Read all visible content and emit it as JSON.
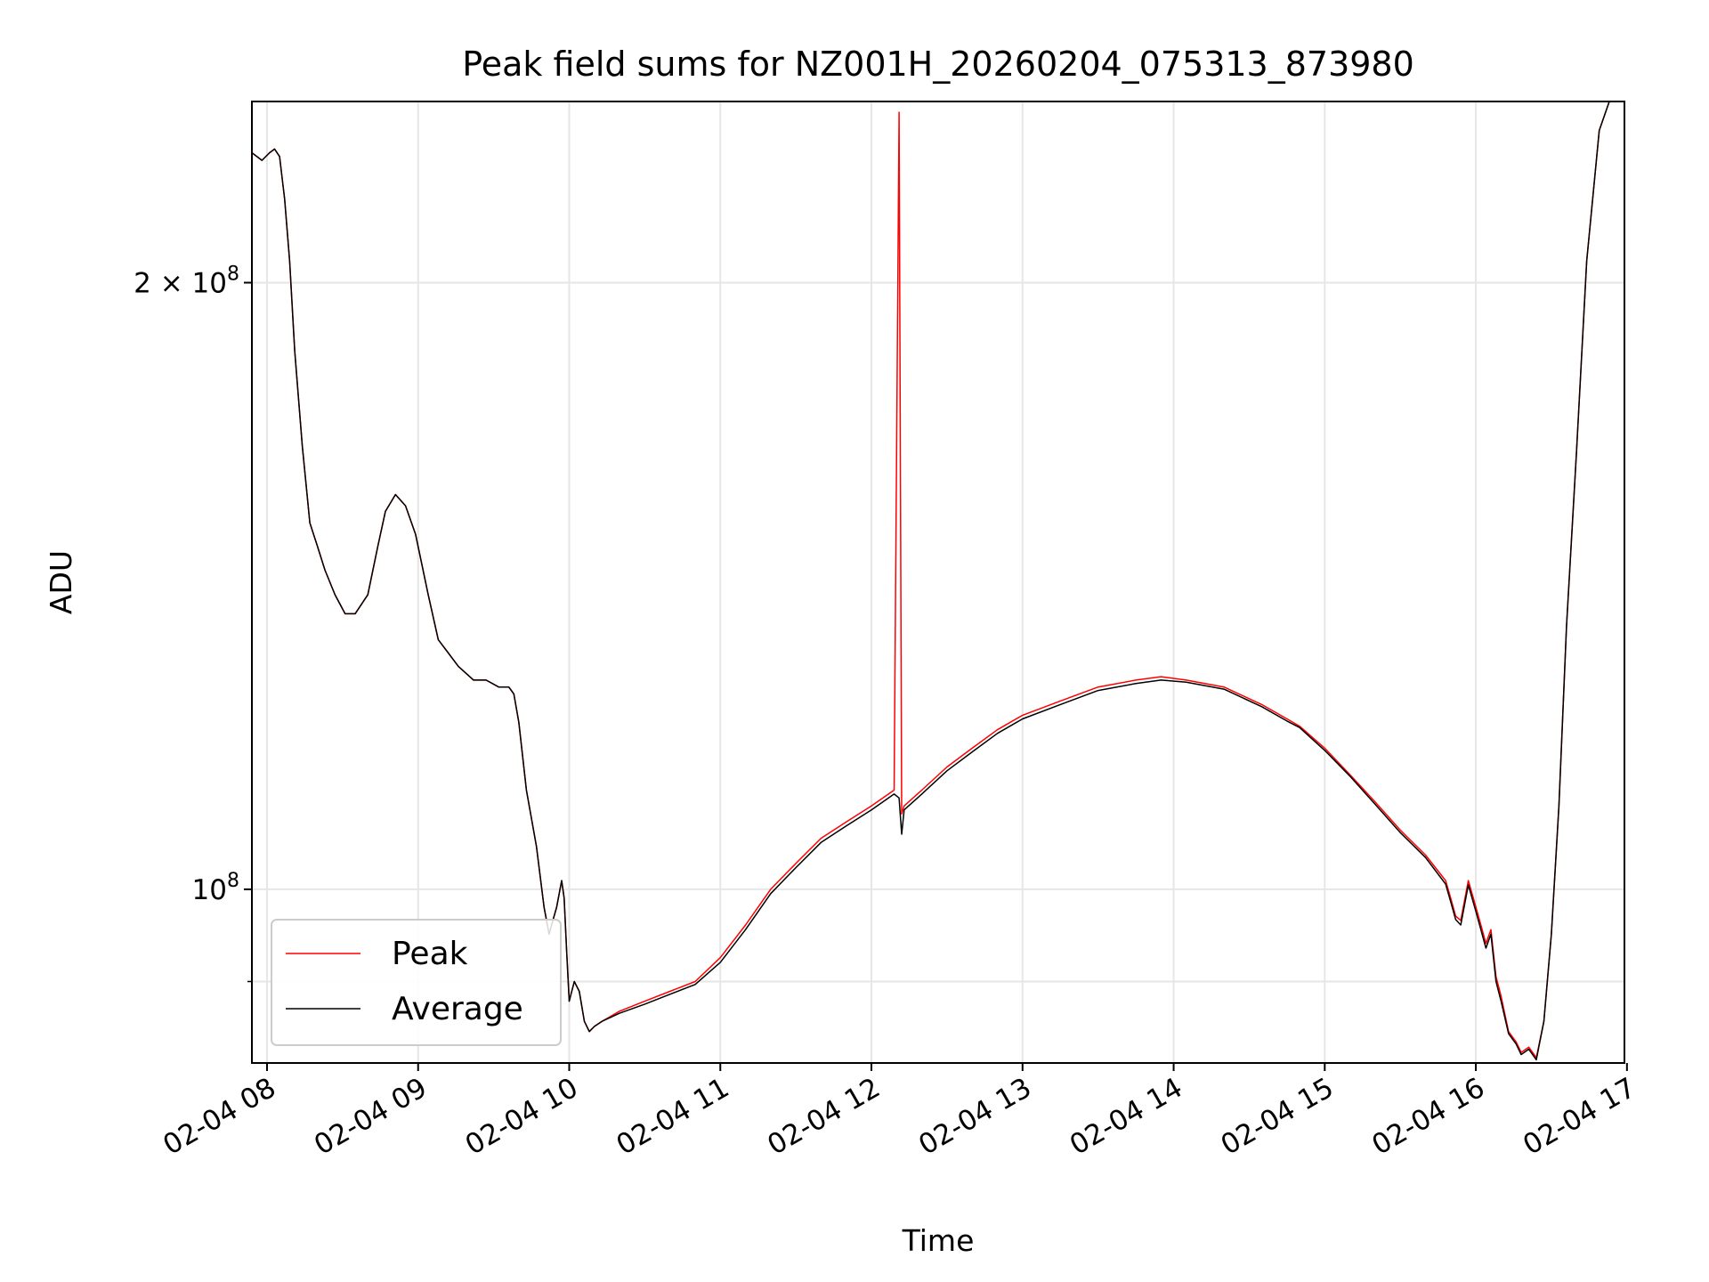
{
  "chart_data": {
    "type": "line",
    "title": "Peak field sums for NZ001H_20260204_075313_873980",
    "xlabel": "Time",
    "ylabel": "ADU",
    "yscale": "log",
    "xlim": [
      "02-04 07:54",
      "02-04 16:59"
    ],
    "ylim": [
      82000000,
      246000000
    ],
    "grid": true,
    "legend_position": "lower-left",
    "x_ticks": [
      {
        "value": "02-04 08:00",
        "label": "02-04 08"
      },
      {
        "value": "02-04 09:00",
        "label": "02-04 09"
      },
      {
        "value": "02-04 10:00",
        "label": "02-04 10"
      },
      {
        "value": "02-04 11:00",
        "label": "02-04 11"
      },
      {
        "value": "02-04 12:00",
        "label": "02-04 12"
      },
      {
        "value": "02-04 13:00",
        "label": "02-04 13"
      },
      {
        "value": "02-04 14:00",
        "label": "02-04 14"
      },
      {
        "value": "02-04 15:00",
        "label": "02-04 15"
      },
      {
        "value": "02-04 16:00",
        "label": "02-04 16"
      },
      {
        "value": "02-04 17:00",
        "label": "02-04 17"
      }
    ],
    "y_ticks": [
      {
        "value": 100000000,
        "base": "10",
        "exp": "8",
        "prefix": ""
      },
      {
        "value": 200000000,
        "base": "10",
        "exp": "8",
        "prefix": "2 × "
      }
    ],
    "y_minor_ticks": [
      90000000
    ],
    "colors": {
      "peak": "#ff0000",
      "average": "#000000",
      "grid": "#e6e6e6"
    },
    "series": [
      {
        "name": "Peak",
        "color": "#ff0000",
        "x": [
          "02-04 07:54",
          "02-04 07:58",
          "02-04 08:01",
          "02-04 08:03",
          "02-04 08:05",
          "02-04 08:07",
          "02-04 08:09",
          "02-04 08:11",
          "02-04 08:14",
          "02-04 08:17",
          "02-04 08:20",
          "02-04 08:23",
          "02-04 08:27",
          "02-04 08:31",
          "02-04 08:35",
          "02-04 08:40",
          "02-04 08:44",
          "02-04 08:47",
          "02-04 08:51",
          "02-04 08:55",
          "02-04 08:59",
          "02-04 09:04",
          "02-04 09:08",
          "02-04 09:12",
          "02-04 09:16",
          "02-04 09:22",
          "02-04 09:27",
          "02-04 09:32",
          "02-04 09:36",
          "02-04 09:38",
          "02-04 09:40",
          "02-04 09:43",
          "02-04 09:47",
          "02-04 09:50",
          "02-04 09:52",
          "02-04 09:53",
          "02-04 09:55",
          "02-04 09:57",
          "02-04 09:58",
          "02-04 09:59",
          "02-04 10:00",
          "02-04 10:02",
          "02-04 10:04",
          "02-04 10:06",
          "02-04 10:08",
          "02-04 10:10",
          "02-04 10:13",
          "02-04 10:20",
          "02-04 10:30",
          "02-04 10:40",
          "02-04 10:50",
          "02-04 11:00",
          "02-04 11:10",
          "02-04 11:20",
          "02-04 11:30",
          "02-04 11:40",
          "02-04 11:50",
          "02-04 12:00",
          "02-04 12:09",
          "02-04 12:11",
          "02-04 12:12",
          "02-04 12:13",
          "02-04 12:20",
          "02-04 12:30",
          "02-04 12:40",
          "02-04 12:50",
          "02-04 13:00",
          "02-04 13:15",
          "02-04 13:30",
          "02-04 13:45",
          "02-04 13:55",
          "02-04 14:05",
          "02-04 14:20",
          "02-04 14:35",
          "02-04 14:45",
          "02-04 14:50",
          "02-04 15:00",
          "02-04 15:10",
          "02-04 15:20",
          "02-04 15:30",
          "02-04 15:40",
          "02-04 15:48",
          "02-04 15:50",
          "02-04 15:52",
          "02-04 15:54",
          "02-04 15:57",
          "02-04 16:00",
          "02-04 16:02",
          "02-04 16:04",
          "02-04 16:06",
          "02-04 16:08",
          "02-04 16:10",
          "02-04 16:13",
          "02-04 16:16",
          "02-04 16:18",
          "02-04 16:21",
          "02-04 16:24",
          "02-04 16:27",
          "02-04 16:30",
          "02-04 16:33",
          "02-04 16:36",
          "02-04 16:40",
          "02-04 16:44",
          "02-04 16:49",
          "02-04 16:53",
          "02-04 16:59"
        ],
        "y": [
          232000000,
          230000000,
          232000000,
          233000000,
          231000000,
          220000000,
          205000000,
          185000000,
          166000000,
          152000000,
          148000000,
          144000000,
          140000000,
          137000000,
          137000000,
          140000000,
          148000000,
          154000000,
          157000000,
          155000000,
          150000000,
          140000000,
          133000000,
          131000000,
          129000000,
          127000000,
          127000000,
          126000000,
          126000000,
          125000000,
          121000000,
          112000000,
          105000000,
          98000000,
          95000000,
          96000000,
          98000000,
          101000000,
          99000000,
          93000000,
          88000000,
          90000000,
          89000000,
          86000000,
          85000000,
          85500000,
          86000000,
          87000000,
          88000000,
          89000000,
          90000000,
          92500000,
          96000000,
          100000000,
          103000000,
          106000000,
          108000000,
          110000000,
          112000000,
          243000000,
          109000000,
          110000000,
          112000000,
          115000000,
          117500000,
          120000000,
          122000000,
          124000000,
          126000000,
          127000000,
          127500000,
          127000000,
          126000000,
          123500000,
          121500000,
          120500000,
          117500000,
          114000000,
          110500000,
          107000000,
          104000000,
          101000000,
          99000000,
          97000000,
          96500000,
          101000000,
          98000000,
          96000000,
          94000000,
          95500000,
          90500000,
          88500000,
          85000000,
          84000000,
          83000000,
          83500000,
          82500000,
          86000000,
          95000000,
          110000000,
          135000000,
          165000000,
          205000000,
          238000000,
          246000000,
          246000000
        ]
      },
      {
        "name": "Average",
        "color": "#000000",
        "x": [
          "02-04 07:54",
          "02-04 07:58",
          "02-04 08:01",
          "02-04 08:03",
          "02-04 08:05",
          "02-04 08:07",
          "02-04 08:09",
          "02-04 08:11",
          "02-04 08:14",
          "02-04 08:17",
          "02-04 08:20",
          "02-04 08:23",
          "02-04 08:27",
          "02-04 08:31",
          "02-04 08:35",
          "02-04 08:40",
          "02-04 08:44",
          "02-04 08:47",
          "02-04 08:51",
          "02-04 08:55",
          "02-04 08:59",
          "02-04 09:04",
          "02-04 09:08",
          "02-04 09:12",
          "02-04 09:16",
          "02-04 09:22",
          "02-04 09:27",
          "02-04 09:32",
          "02-04 09:36",
          "02-04 09:38",
          "02-04 09:40",
          "02-04 09:43",
          "02-04 09:47",
          "02-04 09:50",
          "02-04 09:52",
          "02-04 09:53",
          "02-04 09:55",
          "02-04 09:57",
          "02-04 09:58",
          "02-04 09:59",
          "02-04 10:00",
          "02-04 10:02",
          "02-04 10:04",
          "02-04 10:06",
          "02-04 10:08",
          "02-04 10:10",
          "02-04 10:13",
          "02-04 10:20",
          "02-04 10:30",
          "02-04 10:40",
          "02-04 10:50",
          "02-04 11:00",
          "02-04 11:10",
          "02-04 11:20",
          "02-04 11:30",
          "02-04 11:40",
          "02-04 11:50",
          "02-04 12:00",
          "02-04 12:09",
          "02-04 12:11",
          "02-04 12:12",
          "02-04 12:13",
          "02-04 12:20",
          "02-04 12:30",
          "02-04 12:40",
          "02-04 12:50",
          "02-04 13:00",
          "02-04 13:15",
          "02-04 13:30",
          "02-04 13:45",
          "02-04 13:55",
          "02-04 14:05",
          "02-04 14:20",
          "02-04 14:35",
          "02-04 14:45",
          "02-04 14:50",
          "02-04 15:00",
          "02-04 15:10",
          "02-04 15:20",
          "02-04 15:30",
          "02-04 15:40",
          "02-04 15:48",
          "02-04 15:50",
          "02-04 15:52",
          "02-04 15:54",
          "02-04 15:57",
          "02-04 16:00",
          "02-04 16:02",
          "02-04 16:04",
          "02-04 16:06",
          "02-04 16:08",
          "02-04 16:10",
          "02-04 16:13",
          "02-04 16:16",
          "02-04 16:18",
          "02-04 16:21",
          "02-04 16:24",
          "02-04 16:27",
          "02-04 16:30",
          "02-04 16:33",
          "02-04 16:36",
          "02-04 16:40",
          "02-04 16:44",
          "02-04 16:49",
          "02-04 16:53",
          "02-04 16:59"
        ],
        "y": [
          232000000,
          230000000,
          232000000,
          233000000,
          231000000,
          220000000,
          205000000,
          185000000,
          166000000,
          152000000,
          148000000,
          144000000,
          140000000,
          137000000,
          137000000,
          140000000,
          148000000,
          154000000,
          157000000,
          155000000,
          150000000,
          140000000,
          133000000,
          131000000,
          129000000,
          127000000,
          127000000,
          126000000,
          126000000,
          125000000,
          121000000,
          112000000,
          105000000,
          98000000,
          95000000,
          96000000,
          98000000,
          101000000,
          99000000,
          93000000,
          88000000,
          90000000,
          89000000,
          86000000,
          85000000,
          85500000,
          86000000,
          86800000,
          87700000,
          88700000,
          89700000,
          92000000,
          95500000,
          99500000,
          102500000,
          105500000,
          107500000,
          109500000,
          111500000,
          111000000,
          106500000,
          109500000,
          111500000,
          114500000,
          117000000,
          119500000,
          121500000,
          123500000,
          125500000,
          126500000,
          127000000,
          126700000,
          125700000,
          123200000,
          121200000,
          120300000,
          117200000,
          113800000,
          110200000,
          106700000,
          103700000,
          100600000,
          98600000,
          96600000,
          96000000,
          100500000,
          97500000,
          95500000,
          93500000,
          95000000,
          90000000,
          88000000,
          84800000,
          83800000,
          82800000,
          83300000,
          82300000,
          86000000,
          95000000,
          110000000,
          135000000,
          165000000,
          205000000,
          238000000,
          246000000,
          246000000
        ]
      }
    ]
  }
}
